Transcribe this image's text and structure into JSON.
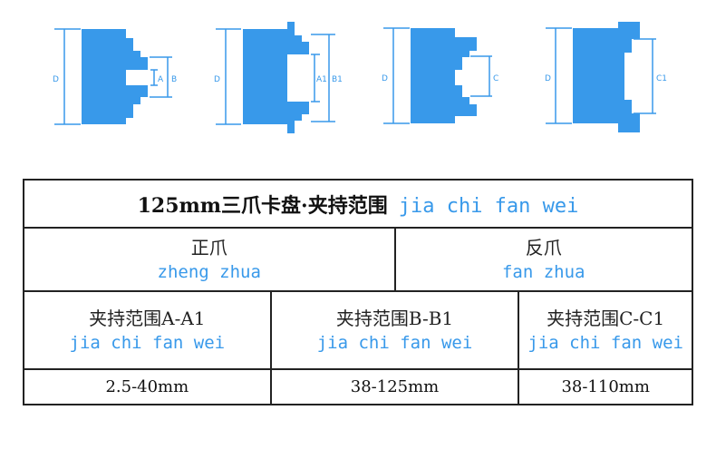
{
  "accent_color": "#3899ea",
  "diagrams": [
    {
      "labels": [
        "D",
        "A",
        "B"
      ]
    },
    {
      "labels": [
        "D",
        "A1",
        "B1"
      ]
    },
    {
      "labels": [
        "D",
        "C"
      ]
    },
    {
      "labels": [
        "D",
        "C1"
      ]
    }
  ],
  "table": {
    "title": "125mm三爪卡盘·夹持范围",
    "title_pinyin": "jia chi fan wei",
    "groups": [
      {
        "label": "正爪",
        "pinyin": "zheng zhua"
      },
      {
        "label": "反爪",
        "pinyin": "fan zhua"
      }
    ],
    "columns": [
      {
        "label": "夹持范围A-A1",
        "pinyin": "jia chi fan wei",
        "value": "2.5-40mm"
      },
      {
        "label": "夹持范围B-B1",
        "pinyin": "jia chi fan wei",
        "value": "38-125mm"
      },
      {
        "label": "夹持范围C-C1",
        "pinyin": "jia chi fan wei",
        "value": "38-110mm"
      }
    ]
  }
}
